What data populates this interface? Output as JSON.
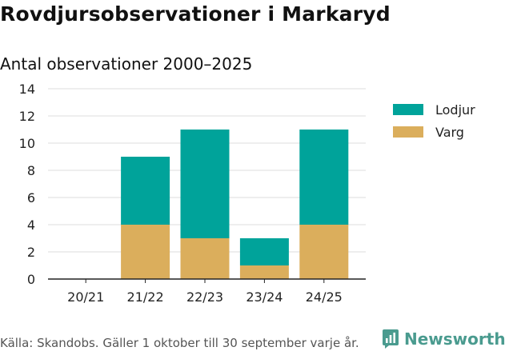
{
  "title": "Rovdjursobservationer i Markaryd",
  "subtitle": "Antal observationer 2000–2025",
  "source": "Källa: Skandobs. Gäller 1 oktober till 30 september varje år.",
  "brand": {
    "name": "Newsworthy",
    "icon": "newsworthy-logo-icon"
  },
  "colors": {
    "lodjur": "#00a39a",
    "varg": "#dbae5c",
    "grid": "#dddddd",
    "axis": "#222222"
  },
  "chart_data": {
    "type": "bar",
    "stacked": true,
    "title": "Rovdjursobservationer i Markaryd",
    "subtitle": "Antal observationer 2000–2025",
    "xlabel": "",
    "ylabel": "",
    "ylim": [
      0,
      14
    ],
    "yticks": [
      0,
      2,
      4,
      6,
      8,
      10,
      12,
      14
    ],
    "grid": true,
    "legend_position": "right",
    "categories": [
      "20/21",
      "21/22",
      "22/23",
      "23/24",
      "24/25"
    ],
    "series": [
      {
        "name": "Varg",
        "color": "#dbae5c",
        "values": [
          0,
          4,
          3,
          1,
          4
        ]
      },
      {
        "name": "Lodjur",
        "color": "#00a39a",
        "values": [
          0,
          5,
          8,
          2,
          7
        ]
      }
    ],
    "legend": [
      "Lodjur",
      "Varg"
    ]
  }
}
